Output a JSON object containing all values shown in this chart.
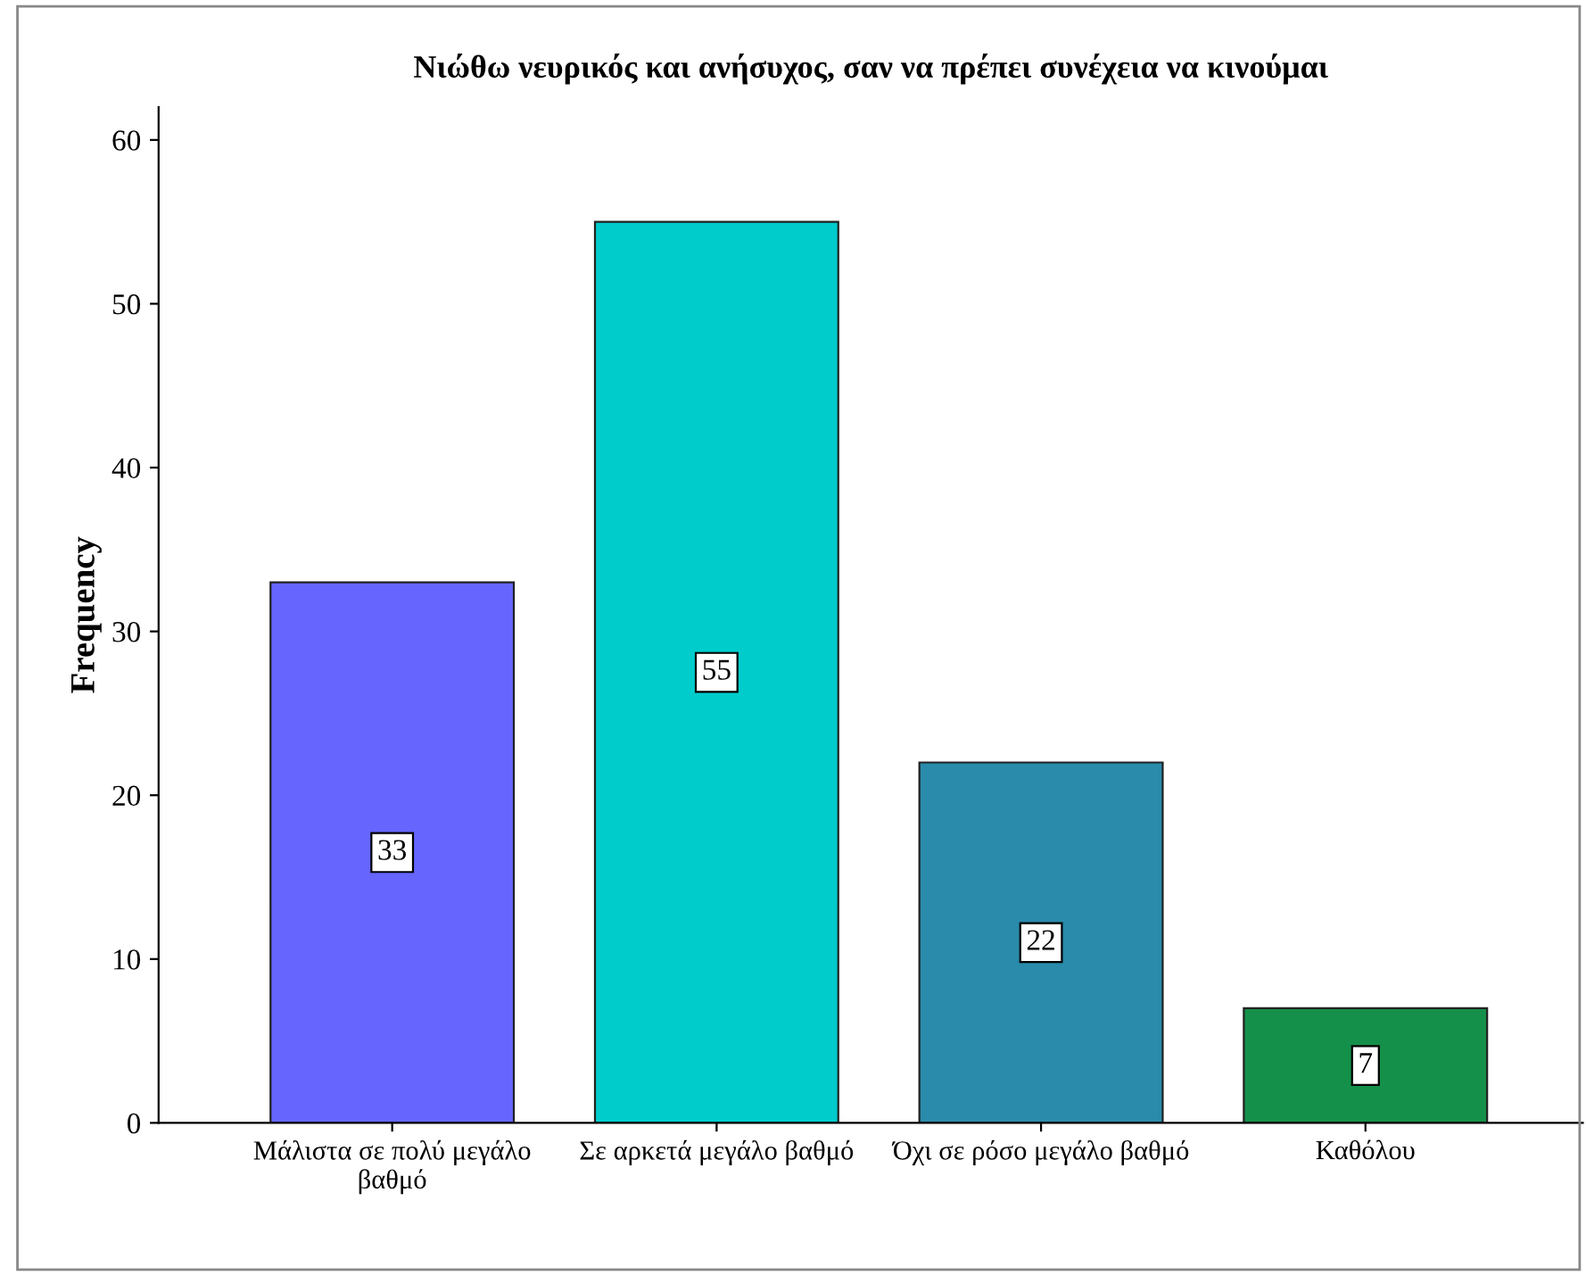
{
  "chart_data": {
    "type": "bar",
    "title": "Νιώθω νευρικός και ανήσυχος, σαν να πρέπει συνέχεια να κινούμαι",
    "ylabel": "Frequency",
    "categories": [
      "Μάλιστα σε πολύ μεγάλο βαθμό",
      "Σε αρκετά μεγάλο βαθμό",
      "Όχι σε ρόσο μεγάλο βαθμό",
      "Καθόλου"
    ],
    "values": [
      33,
      55,
      22,
      7
    ],
    "colors": [
      "#6666ff",
      "#00cccc",
      "#2a8bab",
      "#15904a"
    ],
    "ylim": [
      0,
      62
    ],
    "yticks": [
      0,
      10,
      20,
      30,
      40,
      50,
      60
    ],
    "grid": false,
    "data_labels": true
  }
}
